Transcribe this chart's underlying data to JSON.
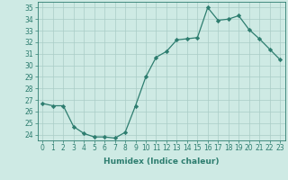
{
  "x": [
    0,
    1,
    2,
    3,
    4,
    5,
    6,
    7,
    8,
    9,
    10,
    11,
    12,
    13,
    14,
    15,
    16,
    17,
    18,
    19,
    20,
    21,
    22,
    23
  ],
  "y": [
    26.7,
    26.5,
    26.5,
    24.7,
    24.1,
    23.8,
    23.8,
    23.7,
    24.2,
    26.5,
    29.0,
    30.7,
    31.2,
    32.2,
    32.3,
    32.4,
    35.0,
    33.9,
    34.0,
    34.3,
    33.1,
    32.3,
    31.4,
    30.5
  ],
  "line_color": "#2d7d6f",
  "marker": "D",
  "marker_size": 2.2,
  "bg_color": "#ceeae4",
  "grid_color": "#aaccc6",
  "tick_color": "#2d7d6f",
  "label_color": "#2d7d6f",
  "xlabel": "Humidex (Indice chaleur)",
  "ylim": [
    23.5,
    35.5
  ],
  "yticks": [
    24,
    25,
    26,
    27,
    28,
    29,
    30,
    31,
    32,
    33,
    34,
    35
  ],
  "xticks": [
    0,
    1,
    2,
    3,
    4,
    5,
    6,
    7,
    8,
    9,
    10,
    11,
    12,
    13,
    14,
    15,
    16,
    17,
    18,
    19,
    20,
    21,
    22,
    23
  ],
  "label_fontsize": 6.5,
  "tick_fontsize": 5.5
}
